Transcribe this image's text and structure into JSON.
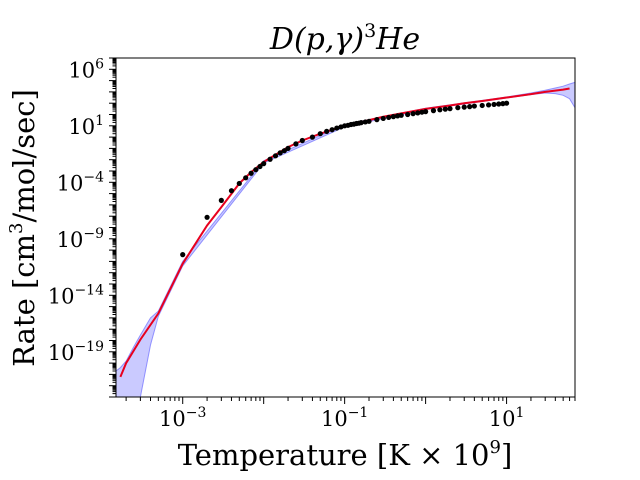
{
  "chart_data": {
    "type": "line",
    "title": {
      "base": "D(p,γ)",
      "superscript": "3",
      "suffix": "He"
    },
    "xlabel": {
      "base": "Temperature [K × 10",
      "superscript": "9",
      "suffix": "]"
    },
    "ylabel": {
      "base": "Rate [cm",
      "superscript": "3",
      "suffix": "/mol/sec]"
    },
    "x_scale": "log",
    "y_scale": "log",
    "xlim": [
      0.00015,
      70
    ],
    "ylim": [
      1e-23,
      10000000.0
    ],
    "x_ticks": [
      {
        "base": "10",
        "exp": "−3",
        "value": 0.001
      },
      {
        "base": "10",
        "exp": "−1",
        "value": 0.1
      },
      {
        "base": "10",
        "exp": "1",
        "value": 10
      }
    ],
    "y_ticks": [
      {
        "base": "10",
        "exp": "6",
        "value": 1000000.0
      },
      {
        "base": "10",
        "exp": "1",
        "value": 10
      },
      {
        "base": "10",
        "exp": "−4",
        "value": 0.0001
      },
      {
        "base": "10",
        "exp": "−9",
        "value": 1e-09
      },
      {
        "base": "10",
        "exp": "−14",
        "value": 1e-14
      },
      {
        "base": "10",
        "exp": "−19",
        "value": 1e-19
      }
    ],
    "grid": false,
    "legend": "none",
    "colors": {
      "fit_line": "#e8001e",
      "band": "#7b7bff",
      "points": "#000000"
    },
    "series": [
      {
        "kind": "fit-line",
        "x": [
          0.00017,
          0.0002,
          0.0003,
          0.0005,
          0.001,
          0.002,
          0.003,
          0.005,
          0.007,
          0.01,
          0.02,
          0.03,
          0.05,
          0.1,
          0.2,
          0.3,
          0.5,
          1,
          2,
          3,
          5,
          10,
          20,
          30,
          50,
          60
        ],
        "y": [
          6e-22,
          1e-20,
          1.2e-18,
          2.5e-16,
          6.3e-12,
          1.5e-08,
          6.3e-07,
          7.9e-05,
          0.00079,
          0.0063,
          0.13,
          0.5,
          2.0,
          10,
          32,
          63,
          126,
          316,
          631,
          1000,
          1580,
          3160,
          6300,
          10000,
          15800,
          20000
        ]
      },
      {
        "kind": "data-points",
        "x": [
          0.001,
          0.002,
          0.003,
          0.004,
          0.005,
          0.006,
          0.007,
          0.008,
          0.009,
          0.01,
          0.012,
          0.014,
          0.016,
          0.018,
          0.02,
          0.025,
          0.03,
          0.04,
          0.05,
          0.06,
          0.07,
          0.08,
          0.09,
          0.1,
          0.11,
          0.12,
          0.13,
          0.14,
          0.15,
          0.16,
          0.18,
          0.2,
          0.25,
          0.3,
          0.35,
          0.4,
          0.45,
          0.5,
          0.6,
          0.7,
          0.8,
          0.9,
          1,
          1.25,
          1.5,
          1.75,
          2,
          2.5,
          3,
          3.5,
          4,
          5,
          6,
          7,
          8,
          9,
          10
        ],
        "y": [
          4e-11,
          8e-08,
          2.5e-06,
          1.8e-05,
          7.9e-05,
          0.00025,
          0.00063,
          0.0013,
          0.0025,
          0.0045,
          0.011,
          0.022,
          0.04,
          0.063,
          0.1,
          0.25,
          0.5,
          1.0,
          2.0,
          3.2,
          4.5,
          6.3,
          7.9,
          10,
          11,
          13,
          14,
          16,
          17,
          19,
          22,
          25,
          35,
          45,
          55,
          65,
          75,
          85,
          100,
          120,
          140,
          160,
          180,
          220,
          260,
          300,
          330,
          400,
          450,
          500,
          560,
          630,
          700,
          780,
          850,
          920,
          1000
        ]
      },
      {
        "kind": "uncertainty-band",
        "x": [
          0.00015,
          0.00017,
          0.0002,
          0.00025,
          0.0003,
          0.0004,
          0.0005,
          0.001,
          0.01,
          0.1,
          1,
          10,
          20,
          30,
          40,
          50,
          60,
          70
        ],
        "y_low": [
          1e-23,
          1e-23,
          1e-23,
          1e-23,
          1e-23,
          4e-19,
          1.4e-16,
          4e-12,
          0.005,
          8,
          280,
          2900,
          5700,
          8000,
          7000,
          5000,
          2500,
          400
        ],
        "y_high": [
          2e-21,
          4e-21,
          1.5e-20,
          3e-19,
          3e-18,
          1e-16,
          4e-16,
          1e-11,
          0.008,
          13,
          360,
          3500,
          8000,
          14000,
          22000,
          32000,
          50000,
          70000
        ]
      }
    ]
  }
}
